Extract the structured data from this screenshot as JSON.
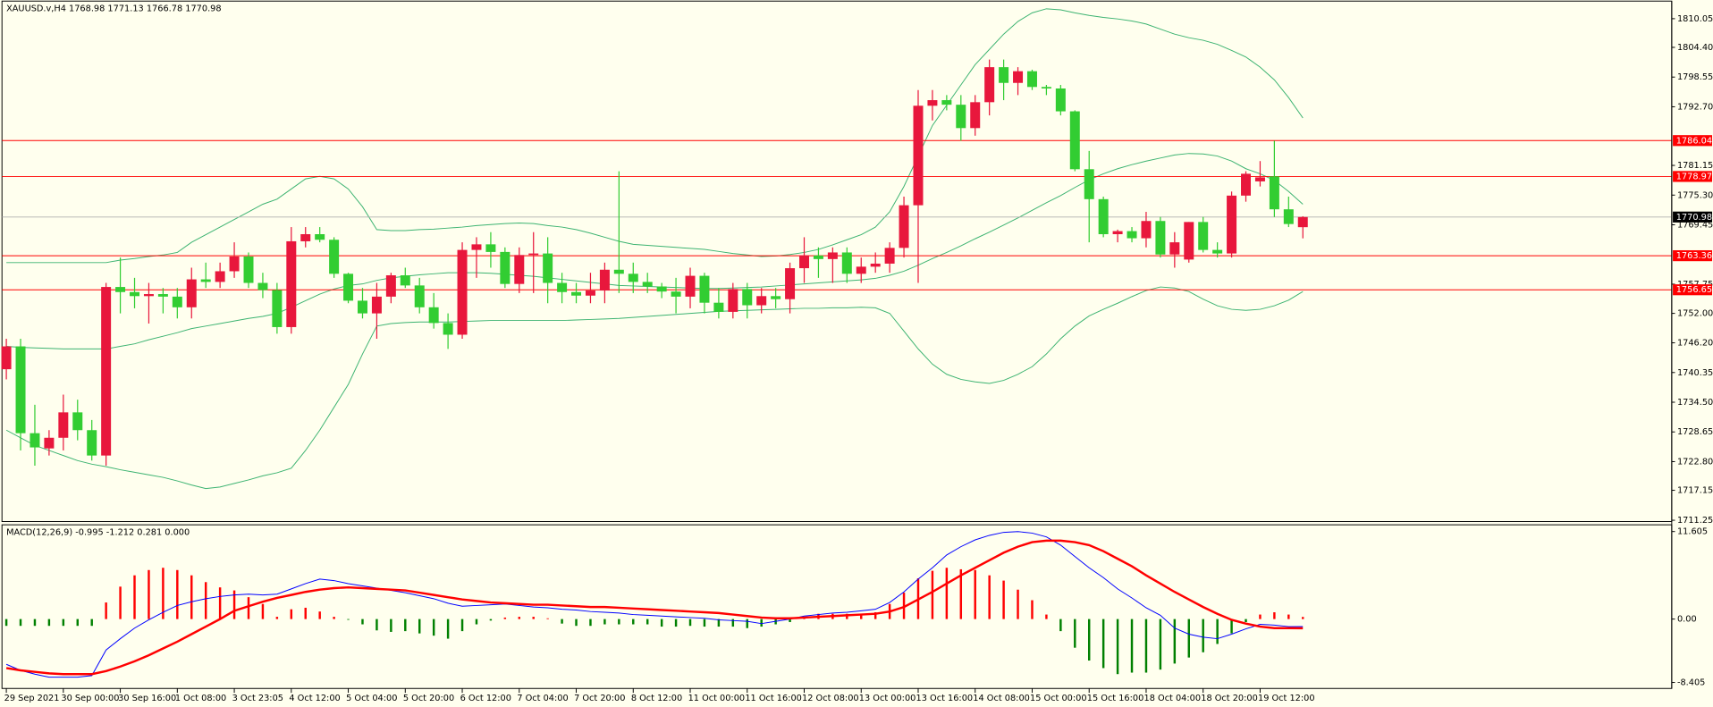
{
  "chart_data": [
    {
      "type": "candlestick",
      "title": "XAUUSD.v,H4  1768.98 1771.13 1766.78 1770.98",
      "categories": [
        "29 Sep 2021",
        null,
        null,
        null,
        "30 Sep 00:00",
        null,
        null,
        null,
        "30 Sep 16:00",
        null,
        null,
        null,
        "1 Oct 08:00",
        null,
        null,
        null,
        "3 Oct 23:05",
        null,
        null,
        null,
        "4 Oct 12:00",
        null,
        null,
        null,
        "5 Oct 04:00",
        null,
        null,
        null,
        "5 Oct 20:00",
        null,
        null,
        null,
        "6 Oct 12:00",
        null,
        null,
        null,
        "7 Oct 04:00",
        null,
        null,
        null,
        "7 Oct 20:00",
        null,
        null,
        null,
        "8 Oct 12:00",
        null,
        null,
        null,
        "11 Oct 00:00",
        null,
        null,
        null,
        "11 Oct 16:00",
        null,
        null,
        null,
        "12 Oct 08:00",
        null,
        null,
        null,
        "13 Oct 00:00",
        null,
        null,
        null,
        "13 Oct 16:00",
        null,
        null,
        null,
        "14 Oct 08:00",
        null,
        null,
        null,
        "15 Oct 00:00",
        null,
        null,
        null,
        "15 Oct 16:00",
        null,
        null,
        null,
        "18 Oct 04:00",
        null,
        null,
        null,
        "18 Oct 20:00",
        null,
        null,
        null,
        "19 Oct 12:00",
        null,
        null,
        null
      ],
      "open": [
        1741,
        1745.5,
        1728.4,
        1725.4,
        1727.5,
        1732.5,
        1729,
        1724,
        1757.2,
        1756.2,
        1755.4,
        1755.8,
        1755.3,
        1753.2,
        1758.7,
        1758.2,
        1760.3,
        1763.2,
        1758,
        1756.6,
        1749.3,
        1766.2,
        1767.6,
        1766.5,
        1759.8,
        1754.5,
        1752,
        1755.3,
        1759.5,
        1757.5,
        1753.2,
        1750.1,
        1747.8,
        1764.5,
        1765.6,
        1764.1,
        1757.8,
        1763.5,
        1763.8,
        1758,
        1756.2,
        1755.5,
        1756.5,
        1760.6,
        1759.8,
        1758.2,
        1757.3,
        1756.3,
        1755.3,
        1759.4,
        1754.1,
        1752.3,
        1756.8,
        1753.6,
        1755.4,
        1754.8,
        1760.9,
        1763.4,
        1762.7,
        1764,
        1759.8,
        1761.2,
        1761.8,
        1764.9,
        1773.3,
        1792.9,
        1794,
        1793.1,
        1788.5,
        1793.6,
        1800.5,
        1797.4,
        1799.7,
        1796.6,
        1796.3,
        1791.8,
        1780.4,
        1774.5,
        1767.6,
        1768.2,
        1766.8,
        1770.2,
        1763.6,
        1762.6,
        1770,
        1764.5,
        1763.8,
        1775.2,
        1778,
        1779,
        1772.5,
        1768.98
      ],
      "high": [
        1747,
        1747,
        1734,
        1729,
        1736,
        1735,
        1731,
        1758,
        1763,
        1759,
        1758,
        1757,
        1757,
        1761,
        1762,
        1762,
        1766,
        1764,
        1760,
        1758,
        1769,
        1769,
        1769,
        1767,
        1760,
        1757,
        1758,
        1760,
        1761,
        1759,
        1756,
        1752,
        1766,
        1767,
        1768,
        1765,
        1765,
        1768,
        1767,
        1760,
        1758,
        1760,
        1762,
        1780,
        1762,
        1760,
        1758,
        1759,
        1761,
        1760,
        1757,
        1758,
        1758,
        1757,
        1757,
        1762,
        1767,
        1765,
        1765,
        1765,
        1763,
        1764,
        1766,
        1775,
        1796,
        1796,
        1795,
        1795,
        1795,
        1802,
        1802,
        1800.5,
        1800,
        1797,
        1797,
        1792,
        1784,
        1775,
        1768.5,
        1769,
        1772,
        1771,
        1768,
        1770,
        1771,
        1766,
        1776,
        1780,
        1782,
        1786,
        1775,
        1771.13
      ],
      "low": [
        1739,
        1725,
        1722,
        1724,
        1725,
        1727,
        1723,
        1722,
        1752,
        1753,
        1750,
        1752,
        1751,
        1751,
        1757,
        1757,
        1759,
        1757,
        1755,
        1748,
        1748,
        1765,
        1766,
        1759,
        1754,
        1751,
        1747,
        1754,
        1757,
        1752,
        1749,
        1745,
        1747,
        1759,
        1761,
        1757,
        1756,
        1756,
        1754,
        1754,
        1754,
        1754,
        1754,
        1756,
        1756,
        1756,
        1755,
        1752,
        1753,
        1752,
        1751,
        1751,
        1751,
        1752,
        1753,
        1752,
        1758,
        1759,
        1758,
        1758,
        1758,
        1760,
        1760,
        1763,
        1758,
        1790,
        1792,
        1786,
        1787,
        1791,
        1794,
        1795,
        1796,
        1795,
        1791,
        1780,
        1766,
        1767,
        1766,
        1766,
        1765,
        1763,
        1761,
        1762,
        1764,
        1763,
        1763,
        1774,
        1777,
        1771,
        1769,
        1766.78
      ],
      "close": [
        1745.5,
        1728.4,
        1725.6,
        1727.5,
        1732.5,
        1729,
        1724,
        1757.2,
        1756.2,
        1755.4,
        1755.8,
        1755.3,
        1753.2,
        1758.7,
        1758.2,
        1760.3,
        1763.2,
        1758,
        1756.6,
        1749.3,
        1766.2,
        1767.6,
        1766.5,
        1759.8,
        1754.5,
        1752,
        1755.3,
        1759.5,
        1757.5,
        1753.2,
        1750.1,
        1747.8,
        1764.5,
        1765.6,
        1764.1,
        1757.8,
        1763.5,
        1763.8,
        1758,
        1756.2,
        1755.5,
        1756.5,
        1760.6,
        1759.8,
        1758.2,
        1757.3,
        1756.3,
        1755.3,
        1759.4,
        1754.1,
        1752.3,
        1756.8,
        1753.6,
        1755.4,
        1754.8,
        1760.9,
        1763.4,
        1762.7,
        1764,
        1759.8,
        1761.2,
        1761.8,
        1764.9,
        1773.3,
        1792.9,
        1794,
        1793.1,
        1788.5,
        1793.6,
        1800.5,
        1797.4,
        1799.7,
        1796.6,
        1796.3,
        1791.8,
        1780.4,
        1774.5,
        1767.6,
        1768.2,
        1766.8,
        1770.2,
        1763.6,
        1766,
        1770,
        1764.5,
        1763.8,
        1775.2,
        1779.5,
        1778.8,
        1772.5,
        1769.6,
        1770.98
      ],
      "up_color": "#e8173c",
      "down_color": "#32cd32",
      "bb_upper": [
        1762,
        1762,
        1762,
        1762,
        1762,
        1762,
        1762,
        1762,
        1762.5,
        1762.8,
        1763.2,
        1763.5,
        1764,
        1766,
        1767.5,
        1769,
        1770.5,
        1772,
        1773.5,
        1774.5,
        1776.5,
        1778.5,
        1779,
        1778.5,
        1776.5,
        1773,
        1768.5,
        1768.3,
        1768.3,
        1768.5,
        1768.6,
        1768.8,
        1769,
        1769.3,
        1769.5,
        1769.7,
        1769.8,
        1769.7,
        1769.3,
        1769,
        1768.5,
        1767.8,
        1767,
        1766.2,
        1765.6,
        1765.4,
        1765.2,
        1765,
        1764.8,
        1764.6,
        1764.2,
        1763.8,
        1763.5,
        1763.2,
        1763.3,
        1763.6,
        1764,
        1764.6,
        1765.5,
        1766.5,
        1767.5,
        1769,
        1772,
        1777,
        1783,
        1789,
        1793,
        1797,
        1801,
        1804,
        1807,
        1809.5,
        1811.2,
        1812,
        1811.8,
        1811.2,
        1810.7,
        1810.3,
        1810,
        1809.6,
        1809,
        1808,
        1807,
        1806.3,
        1805.8,
        1805,
        1803.8,
        1802.5,
        1800.5,
        1798,
        1794.5,
        1790.5
      ],
      "bb_middle": [
        1745.5,
        1745.3,
        1745.2,
        1745.1,
        1745,
        1745,
        1745,
        1745,
        1745.5,
        1746,
        1746.8,
        1747.5,
        1748.2,
        1749,
        1749.5,
        1750,
        1750.5,
        1751,
        1751.4,
        1752,
        1753.2,
        1754.5,
        1755.8,
        1756.8,
        1757.5,
        1757.8,
        1758.5,
        1759,
        1759.3,
        1759.6,
        1759.8,
        1760,
        1760,
        1760,
        1759.9,
        1759.7,
        1759.5,
        1759.3,
        1759,
        1758.7,
        1758.4,
        1758.1,
        1757.8,
        1757.5,
        1757.4,
        1757.3,
        1757.2,
        1757.1,
        1757,
        1756.9,
        1756.9,
        1757,
        1757.1,
        1757.2,
        1757.4,
        1757.6,
        1757.8,
        1758,
        1758.2,
        1758.4,
        1758.6,
        1758.9,
        1759.5,
        1760.3,
        1761.5,
        1762.8,
        1764,
        1765.3,
        1766.7,
        1768,
        1769.4,
        1770.8,
        1772.3,
        1773.8,
        1775.2,
        1776.8,
        1778.3,
        1779.5,
        1780.5,
        1781.3,
        1782,
        1782.6,
        1783.2,
        1783.5,
        1783.4,
        1783,
        1782,
        1780.5,
        1779.5,
        1778.2,
        1776,
        1773.5
      ],
      "bb_lower": [
        1729,
        1727.5,
        1726,
        1725,
        1724,
        1723,
        1722.3,
        1721.8,
        1721.2,
        1720.7,
        1720.2,
        1719.7,
        1719,
        1718.2,
        1717.5,
        1717.8,
        1718.5,
        1719.2,
        1720,
        1720.6,
        1721.5,
        1725,
        1729,
        1733.5,
        1738,
        1744,
        1749.5,
        1750,
        1750.2,
        1750.3,
        1750.3,
        1750.3,
        1750.4,
        1750.5,
        1750.6,
        1750.6,
        1750.6,
        1750.6,
        1750.6,
        1750.6,
        1750.7,
        1750.8,
        1750.9,
        1751,
        1751.2,
        1751.4,
        1751.6,
        1751.8,
        1752,
        1752.2,
        1752.4,
        1752.5,
        1752.6,
        1752.7,
        1752.8,
        1752.9,
        1753,
        1753,
        1753.1,
        1753.1,
        1753.2,
        1753.1,
        1752,
        1748.5,
        1745,
        1742,
        1740,
        1739,
        1738.5,
        1738.2,
        1738.8,
        1740,
        1741.5,
        1744,
        1747,
        1749.5,
        1751.5,
        1752.8,
        1754,
        1755.3,
        1756.5,
        1757.2,
        1757,
        1756.3,
        1754.8,
        1753.5,
        1752.8,
        1752.6,
        1752.8,
        1753.5,
        1754.6,
        1756.3
      ],
      "band_color": "#3cb371",
      "levels": [
        {
          "value": 1786.04,
          "color": "#ff0000"
        },
        {
          "value": 1778.97,
          "color": "#ff0000"
        },
        {
          "value": 1770.98,
          "color": "#000000"
        },
        {
          "value": 1763.36,
          "color": "#ff0000"
        },
        {
          "value": 1756.65,
          "color": "#ff0000"
        }
      ],
      "ylim": [
        1711.0,
        1813.3
      ],
      "yticks": [
        1810.05,
        {
          "value": 1804.4,
          "label": "1804.40"
        },
        1798.55,
        {
          "value": 1792.7,
          "label": "1792.70"
        },
        1781.15,
        {
          "value": 1775.3,
          "label": "1775.30"
        },
        1769.45,
        1757.75,
        {
          "value": 1752,
          "label": "1752.00"
        },
        {
          "value": 1746.2,
          "label": "1746.20"
        },
        1740.35,
        {
          "value": 1734.5,
          "label": "1734.50"
        },
        1728.65,
        {
          "value": 1722.8,
          "label": "1722.80"
        },
        1717.15,
        1711.25
      ]
    },
    {
      "type": "macd",
      "title": "MACD(12,26,9) -0.995 -1.212 0.281 0.000",
      "histogram": [
        -0.9,
        -0.9,
        -0.9,
        -0.9,
        -0.9,
        -0.9,
        -0.9,
        2.2,
        4.3,
        5.8,
        6.5,
        6.8,
        6.5,
        5.8,
        4.9,
        4.2,
        3.8,
        2.9,
        2.0,
        0.3,
        1.3,
        1.5,
        1.0,
        0.3,
        -0.1,
        -0.7,
        -1.5,
        -1.7,
        -1.6,
        -1.9,
        -2.2,
        -2.6,
        -1.6,
        -0.7,
        -0.2,
        0.2,
        0.3,
        0.3,
        0.1,
        -0.6,
        -0.9,
        -0.9,
        -0.7,
        -0.7,
        -0.7,
        -0.7,
        -1.0,
        -1.0,
        -0.9,
        -1.0,
        -1.0,
        -1.0,
        -1.2,
        -1.0,
        -0.7,
        -0.4,
        0.3,
        0.7,
        0.7,
        0.7,
        0.7,
        0.9,
        2.0,
        3.5,
        5.4,
        6.4,
        6.8,
        6.6,
        6.5,
        5.8,
        5.1,
        3.9,
        2.5,
        0.6,
        -1.6,
        -3.8,
        -5.5,
        -6.5,
        -7.3,
        -7.1,
        -7.1,
        -6.7,
        -5.9,
        -5.1,
        -4.4,
        -3.3,
        -1.9,
        -0.4,
        0.6,
        0.9,
        0.6,
        0.281
      ],
      "main": [
        -6.0,
        -6.8,
        -7.3,
        -7.7,
        -7.7,
        -7.7,
        -7.5,
        -4.1,
        -2.6,
        -1.2,
        -0.1,
        0.9,
        1.8,
        2.3,
        2.7,
        3.0,
        3.2,
        3.3,
        3.2,
        3.3,
        4.0,
        4.7,
        5.3,
        5.1,
        4.7,
        4.4,
        4.1,
        3.8,
        3.5,
        3.1,
        2.7,
        2.1,
        1.7,
        1.8,
        1.9,
        2.0,
        1.8,
        1.6,
        1.5,
        1.3,
        1.2,
        1.0,
        0.9,
        0.8,
        0.6,
        0.5,
        0.4,
        0.3,
        0.2,
        0.1,
        -0.1,
        -0.2,
        -0.3,
        -0.6,
        -0.3,
        0.0,
        0.4,
        0.6,
        0.8,
        0.9,
        1.1,
        1.3,
        2.2,
        3.6,
        5.3,
        6.8,
        8.5,
        9.6,
        10.5,
        11.1,
        11.5,
        11.6,
        11.4,
        10.9,
        9.8,
        8.3,
        6.8,
        5.5,
        4.0,
        2.8,
        1.5,
        0.5,
        -1.2,
        -2.0,
        -2.4,
        -2.6,
        -2.0,
        -1.3,
        -0.7,
        -0.8,
        -1.0,
        -0.995
      ],
      "signal": [
        -6.5,
        -6.8,
        -7.0,
        -7.2,
        -7.3,
        -7.3,
        -7.3,
        -6.9,
        -6.3,
        -5.6,
        -4.8,
        -3.9,
        -3.0,
        -2.0,
        -1.0,
        0.0,
        1.1,
        1.7,
        2.3,
        2.8,
        3.2,
        3.6,
        3.9,
        4.1,
        4.2,
        4.1,
        4.0,
        3.9,
        3.8,
        3.5,
        3.2,
        2.9,
        2.6,
        2.4,
        2.2,
        2.1,
        2.0,
        1.9,
        1.9,
        1.8,
        1.7,
        1.6,
        1.6,
        1.5,
        1.4,
        1.3,
        1.2,
        1.1,
        1.0,
        0.9,
        0.8,
        0.6,
        0.4,
        0.2,
        0.1,
        0.1,
        0.2,
        0.3,
        0.4,
        0.5,
        0.6,
        0.7,
        1.0,
        1.6,
        2.6,
        3.6,
        4.7,
        5.8,
        6.8,
        7.8,
        8.8,
        9.6,
        10.2,
        10.4,
        10.4,
        10.2,
        9.8,
        9.0,
        8.0,
        7.0,
        5.8,
        4.7,
        3.6,
        2.6,
        1.6,
        0.7,
        -0.1,
        -0.6,
        -1.0,
        -1.2,
        -1.2,
        -1.212
      ],
      "main_color": "#0000ff",
      "signal_color": "#ff0000",
      "hist_up_color": "#ff0000",
      "hist_down_color": "#008000",
      "ylim": [
        -9.2,
        12.5
      ],
      "yticks": [
        11.605,
        {
          "value": 0,
          "label": "0.00"
        },
        -8.405
      ]
    }
  ]
}
